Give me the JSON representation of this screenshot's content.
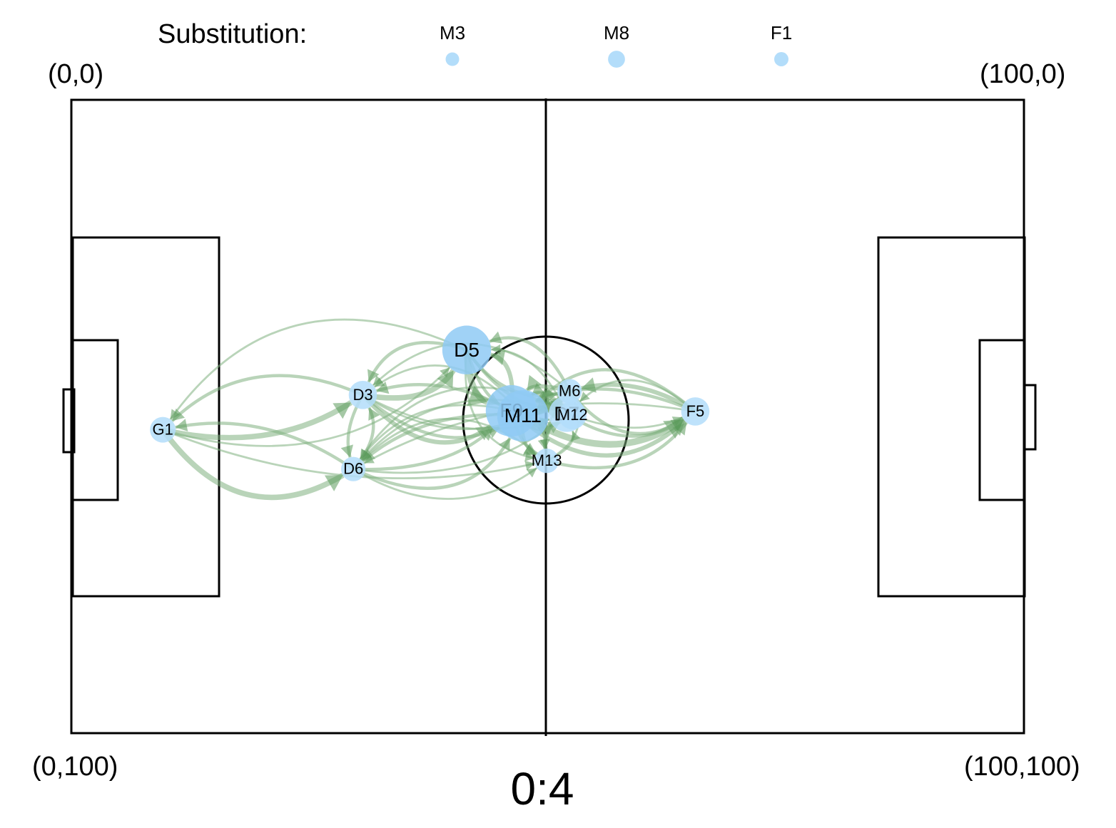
{
  "substitution": {
    "label": "Substitution:",
    "players": [
      {
        "id": "M3",
        "size": 1.0
      },
      {
        "id": "M8",
        "size": 1.25
      },
      {
        "id": "F1",
        "size": 1.05
      }
    ]
  },
  "corners": {
    "top_left": "(0,0)",
    "top_right": "(100,0)",
    "bottom_left": "(0,100)",
    "bottom_right": "(100,100)"
  },
  "score": "0:4",
  "colors": {
    "node": "#b3ddfa",
    "node_large": "#8fcaf5",
    "edge": "#7fb07f",
    "pitch": "#000000"
  },
  "network": {
    "nodes": [
      {
        "id": "G1",
        "x": 9.6,
        "y": 52.1,
        "size": 1.0
      },
      {
        "id": "D3",
        "x": 30.6,
        "y": 46.6,
        "size": 1.1
      },
      {
        "id": "D6",
        "x": 29.6,
        "y": 58.3,
        "size": 0.95
      },
      {
        "id": "D5",
        "x": 41.5,
        "y": 39.5,
        "size": 1.9
      },
      {
        "id": "F9",
        "x": 46.2,
        "y": 49.1,
        "size": 2.0
      },
      {
        "id": "M11",
        "x": 47.4,
        "y": 49.9,
        "size": 2.0
      },
      {
        "id": "M13",
        "x": 49.9,
        "y": 57.0,
        "size": 0.95
      },
      {
        "id": "M6",
        "x": 52.3,
        "y": 46.0,
        "size": 0.95
      },
      {
        "id": "D7",
        "x": 52.0,
        "y": 49.6,
        "size": 1.4
      },
      {
        "id": "M12",
        "x": 52.6,
        "y": 49.8,
        "size": 1.1
      },
      {
        "id": "F5",
        "x": 65.5,
        "y": 49.2,
        "size": 1.1
      }
    ],
    "edges": [
      {
        "from": "G1",
        "to": "D3",
        "weight": 4
      },
      {
        "from": "D3",
        "to": "G1",
        "weight": 2
      },
      {
        "from": "G1",
        "to": "D6",
        "weight": 4
      },
      {
        "from": "D6",
        "to": "G1",
        "weight": 2
      },
      {
        "from": "G1",
        "to": "D5",
        "weight": 1
      },
      {
        "from": "D5",
        "to": "G1",
        "weight": 1
      },
      {
        "from": "G1",
        "to": "M13",
        "weight": 1
      },
      {
        "from": "D3",
        "to": "D5",
        "weight": 4
      },
      {
        "from": "D5",
        "to": "D3",
        "weight": 2
      },
      {
        "from": "D3",
        "to": "D6",
        "weight": 2
      },
      {
        "from": "D6",
        "to": "D3",
        "weight": 2
      },
      {
        "from": "D3",
        "to": "F9",
        "weight": 3
      },
      {
        "from": "F9",
        "to": "D3",
        "weight": 2
      },
      {
        "from": "D3",
        "to": "M11",
        "weight": 2
      },
      {
        "from": "M11",
        "to": "D3",
        "weight": 1
      },
      {
        "from": "D3",
        "to": "D7",
        "weight": 1
      },
      {
        "from": "D3",
        "to": "M6",
        "weight": 1
      },
      {
        "from": "M6",
        "to": "D3",
        "weight": 1
      },
      {
        "from": "D6",
        "to": "F9",
        "weight": 2
      },
      {
        "from": "F9",
        "to": "D6",
        "weight": 1
      },
      {
        "from": "D6",
        "to": "M11",
        "weight": 2
      },
      {
        "from": "M11",
        "to": "D6",
        "weight": 2
      },
      {
        "from": "D6",
        "to": "M13",
        "weight": 1
      },
      {
        "from": "M13",
        "to": "D6",
        "weight": 1
      },
      {
        "from": "D6",
        "to": "D7",
        "weight": 1
      },
      {
        "from": "D7",
        "to": "D6",
        "weight": 1
      },
      {
        "from": "M12",
        "to": "D6",
        "weight": 1
      },
      {
        "from": "F5",
        "to": "D6",
        "weight": 1
      },
      {
        "from": "D5",
        "to": "F9",
        "weight": 5
      },
      {
        "from": "F9",
        "to": "D5",
        "weight": 3
      },
      {
        "from": "D5",
        "to": "M11",
        "weight": 2
      },
      {
        "from": "D5",
        "to": "M6",
        "weight": 2
      },
      {
        "from": "M6",
        "to": "D5",
        "weight": 2
      },
      {
        "from": "D5",
        "to": "D7",
        "weight": 2
      },
      {
        "from": "D7",
        "to": "D5",
        "weight": 1
      },
      {
        "from": "D5",
        "to": "M13",
        "weight": 1
      },
      {
        "from": "F9",
        "to": "M6",
        "weight": 5
      },
      {
        "from": "M6",
        "to": "F9",
        "weight": 3
      },
      {
        "from": "F9",
        "to": "D7",
        "weight": 3
      },
      {
        "from": "D7",
        "to": "F9",
        "weight": 3
      },
      {
        "from": "F9",
        "to": "M12",
        "weight": 2
      },
      {
        "from": "M12",
        "to": "F9",
        "weight": 2
      },
      {
        "from": "F9",
        "to": "M13",
        "weight": 2
      },
      {
        "from": "M13",
        "to": "F9",
        "weight": 2
      },
      {
        "from": "F9",
        "to": "F5",
        "weight": 3
      },
      {
        "from": "F5",
        "to": "F9",
        "weight": 2
      },
      {
        "from": "M11",
        "to": "F5",
        "weight": 5
      },
      {
        "from": "F5",
        "to": "M11",
        "weight": 2
      },
      {
        "from": "M11",
        "to": "M6",
        "weight": 2
      },
      {
        "from": "M11",
        "to": "M13",
        "weight": 2
      },
      {
        "from": "M6",
        "to": "F5",
        "weight": 2
      },
      {
        "from": "F5",
        "to": "M6",
        "weight": 3
      },
      {
        "from": "D7",
        "to": "F5",
        "weight": 2
      },
      {
        "from": "F5",
        "to": "D7",
        "weight": 1
      },
      {
        "from": "M12",
        "to": "F5",
        "weight": 1
      },
      {
        "from": "M13",
        "to": "F5",
        "weight": 2
      },
      {
        "from": "M13",
        "to": "M6",
        "weight": 1
      },
      {
        "from": "M6",
        "to": "M13",
        "weight": 1
      },
      {
        "from": "D7",
        "to": "M13",
        "weight": 1
      },
      {
        "from": "M13",
        "to": "D7",
        "weight": 1
      }
    ]
  }
}
